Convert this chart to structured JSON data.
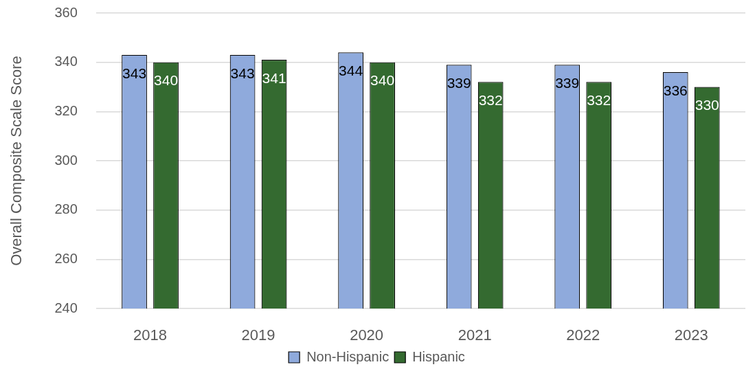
{
  "chart_data": {
    "type": "bar",
    "ylabel": "Overall Composite Scale Score",
    "categories": [
      "2018",
      "2019",
      "2020",
      "2021",
      "2022",
      "2023"
    ],
    "series": [
      {
        "name": "Non-Hispanic",
        "color": "#8faadc",
        "values": [
          343,
          343,
          344,
          339,
          339,
          336
        ]
      },
      {
        "name": "Hispanic",
        "color": "#346a30",
        "values": [
          340,
          341,
          340,
          332,
          332,
          330
        ]
      }
    ],
    "ylim": [
      240,
      360
    ],
    "yticks": [
      240,
      260,
      280,
      300,
      320,
      340,
      360
    ],
    "grid": "y",
    "legend": "bottom",
    "data_labels": true
  }
}
